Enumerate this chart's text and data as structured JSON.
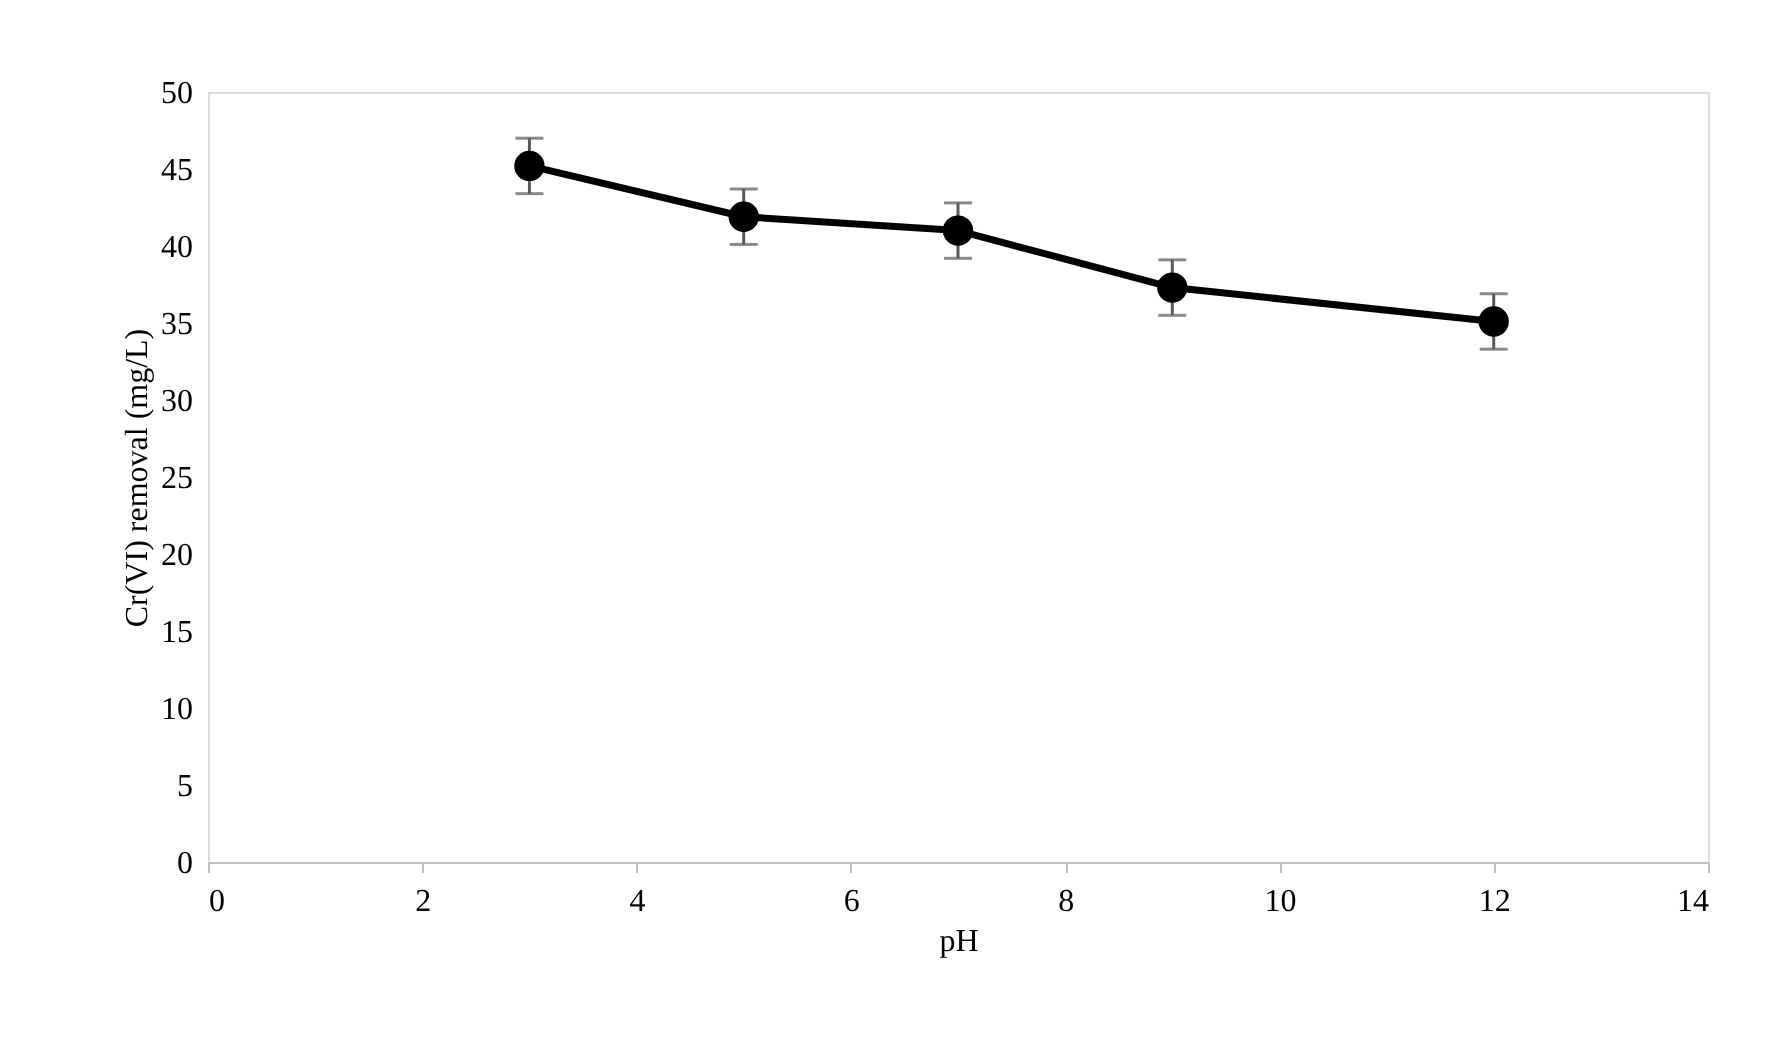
{
  "chart_data": {
    "type": "line",
    "xlabel": "pH",
    "ylabel": "Cr(VI) removal (mg/L)",
    "x": [
      3,
      5,
      7,
      9,
      12
    ],
    "series": [
      {
        "color": "#000000",
        "values": [
          45.2,
          41.9,
          41.0,
          37.3,
          35.1
        ],
        "errors": [
          1.8,
          1.8,
          1.8,
          1.8,
          1.8
        ]
      }
    ],
    "xlim": [
      0,
      14
    ],
    "xticks": [
      0,
      2,
      4,
      6,
      8,
      10,
      12,
      14
    ],
    "ylim": [
      0,
      50
    ],
    "yticks": [
      0,
      5,
      10,
      15,
      20,
      25,
      30,
      35,
      40,
      45,
      50
    ],
    "grid": false,
    "marker": "circle",
    "line_style": "solid"
  }
}
